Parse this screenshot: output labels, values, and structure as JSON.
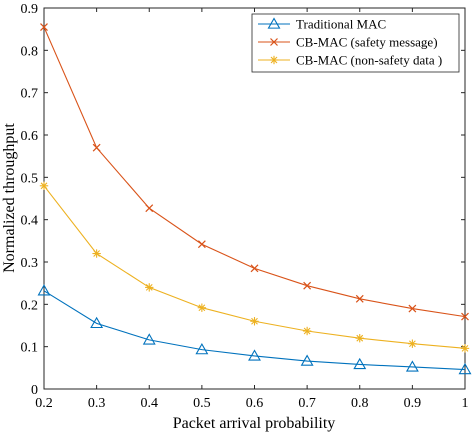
{
  "chart_data": {
    "type": "line",
    "title": "",
    "xlabel": "Packet arrival probability",
    "ylabel": "Normalized throughput",
    "xlim": [
      0.2,
      1
    ],
    "ylim": [
      0,
      0.9
    ],
    "x": [
      0.2,
      0.3,
      0.4,
      0.5,
      0.6,
      0.7,
      0.8,
      0.9,
      1
    ],
    "xticks": [
      "0.2",
      "0.3",
      "0.4",
      "0.5",
      "0.6",
      "0.7",
      "0.8",
      "0.9",
      "1"
    ],
    "yticks": [
      "0",
      "0.1",
      "0.2",
      "0.3",
      "0.4",
      "0.5",
      "0.6",
      "0.7",
      "0.8",
      "0.9"
    ],
    "grid": false,
    "legend_position": "top-right",
    "series": [
      {
        "name": "Traditional MAC",
        "color": "#0072BD",
        "marker": "triangle",
        "values": [
          0.232,
          0.155,
          0.116,
          0.093,
          0.078,
          0.066,
          0.058,
          0.052,
          0.046
        ]
      },
      {
        "name": "CB-MAC (safety message)",
        "color": "#D95319",
        "marker": "x",
        "values": [
          0.855,
          0.57,
          0.427,
          0.342,
          0.285,
          0.244,
          0.213,
          0.19,
          0.171
        ]
      },
      {
        "name": "CB-MAC (non-safety data )",
        "color": "#EDB120",
        "marker": "asterisk",
        "values": [
          0.48,
          0.32,
          0.24,
          0.192,
          0.16,
          0.137,
          0.12,
          0.107,
          0.096
        ]
      }
    ]
  }
}
